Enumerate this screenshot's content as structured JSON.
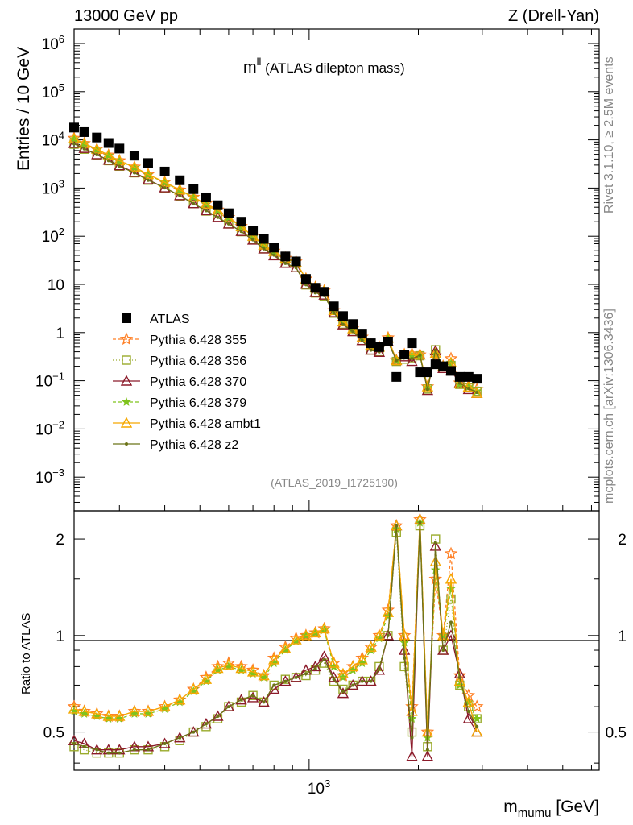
{
  "header": {
    "left": "13000 GeV pp",
    "right": "Z (Drell-Yan)",
    "title_main": "m",
    "title_sup": "ll",
    "title_rest": " (ATLAS dilepton mass)",
    "analysis": "(ATLAS_2019_I1725190)",
    "side_top": "Rivet 3.1.10, ≥ 2.5M events",
    "side_bottom": "mcplots.cern.ch [arXiv:1306.3436]"
  },
  "axes": {
    "ylabel_top": "Entries / 10 GeV",
    "ylabel_bottom": "Ratio to ATLAS",
    "xlabel_main": "m",
    "xlabel_sub": "mumu",
    "xlabel_unit": " [GeV]",
    "x_tick": "10",
    "x_tick_exp": "3",
    "y_ticks_top": [
      {
        "v": 1000000,
        "base": "10",
        "exp": "6"
      },
      {
        "v": 100000,
        "base": "10",
        "exp": "5"
      },
      {
        "v": 10000,
        "base": "10",
        "exp": "4"
      },
      {
        "v": 1000,
        "base": "10",
        "exp": "3"
      },
      {
        "v": 100,
        "base": "10",
        "exp": "2"
      },
      {
        "v": 10,
        "base": "10",
        "exp": ""
      },
      {
        "v": 1,
        "base": "1",
        "exp": ""
      },
      {
        "v": 0.1,
        "base": "10",
        "exp": "−1"
      },
      {
        "v": 0.01,
        "base": "10",
        "exp": "−2"
      },
      {
        "v": 0.001,
        "base": "10",
        "exp": "−3"
      }
    ],
    "y_ticks_bottom": [
      "2",
      "1",
      "0.5"
    ]
  },
  "legend": [
    {
      "label": "ATLAS",
      "color": "#000000",
      "marker": "square",
      "dash": "none"
    },
    {
      "label": "Pythia 6.428 355",
      "color": "#ff7f24",
      "marker": "star",
      "dash": "4,3"
    },
    {
      "label": "Pythia 6.428 356",
      "color": "#9aab2c",
      "marker": "opensquare",
      "dash": "1,3"
    },
    {
      "label": "Pythia 6.428 370",
      "color": "#8b1a2a",
      "marker": "opentriangle",
      "dash": "none"
    },
    {
      "label": "Pythia 6.428 379",
      "color": "#7fc31c",
      "marker": "smallstar",
      "dash": "4,3"
    },
    {
      "label": "Pythia 6.428 ambt1",
      "color": "#f5a800",
      "marker": "opentriangle",
      "dash": "none"
    },
    {
      "label": "Pythia 6.428 z2",
      "color": "#6b7317",
      "marker": "dot",
      "dash": "none"
    }
  ],
  "chart_data": {
    "type": "scatter",
    "title": "mll (ATLAS dilepton mass)",
    "xlabel": "m_mumu [GeV]",
    "ylabel": "Entries / 10 GeV",
    "x_scale": "log",
    "y_scale": "log",
    "xlim": [
      225,
      6300
    ],
    "ylim": [
      0.0002,
      2000000
    ],
    "ratio_ylim": [
      0.38,
      2.45
    ],
    "ratio_ylabel": "Ratio to ATLAS",
    "x": [
      225,
      240,
      260,
      280,
      300,
      330,
      360,
      400,
      440,
      480,
      520,
      560,
      600,
      650,
      700,
      750,
      800,
      860,
      920,
      980,
      1040,
      1100,
      1170,
      1240,
      1320,
      1400,
      1480,
      1560,
      1650,
      1740,
      1830,
      1920,
      2020,
      2120,
      2230,
      2340,
      2460,
      2600,
      2750,
      2900
    ],
    "atlas": [
      18000,
      14500,
      11200,
      8600,
      6600,
      4700,
      3300,
      2200,
      1450,
      950,
      640,
      440,
      300,
      200,
      130,
      88,
      58,
      38,
      30,
      13,
      8.5,
      7,
      3.5,
      2.2,
      1.5,
      0.95,
      0.6,
      0.5,
      0.65,
      0.12,
      0.35,
      0.6,
      0.15,
      0.15,
      0.22,
      0.2,
      0.16,
      0.12,
      0.12,
      0.11
    ],
    "series": [
      {
        "name": "Pythia 6.428 355",
        "ratio": [
          0.6,
          0.58,
          0.57,
          0.56,
          0.56,
          0.58,
          0.58,
          0.6,
          0.63,
          0.68,
          0.74,
          0.8,
          0.82,
          0.8,
          0.78,
          0.75,
          0.85,
          0.92,
          0.98,
          1.0,
          1.02,
          1.05,
          0.82,
          0.75,
          0.8,
          0.85,
          0.92,
          1.0,
          1.2,
          2.2,
          1.0,
          0.6,
          2.3,
          0.5,
          1.5,
          1.0,
          1.8,
          0.75,
          0.65,
          0.6
        ]
      },
      {
        "name": "Pythia 6.428 356",
        "ratio": [
          0.45,
          0.44,
          0.43,
          0.43,
          0.43,
          0.44,
          0.44,
          0.45,
          0.47,
          0.5,
          0.52,
          0.55,
          0.6,
          0.62,
          0.65,
          0.62,
          0.7,
          0.73,
          0.74,
          0.75,
          0.78,
          0.82,
          0.72,
          0.68,
          0.7,
          0.72,
          0.72,
          0.8,
          1.0,
          2.1,
          0.8,
          0.5,
          2.2,
          0.45,
          2.0,
          0.9,
          1.3,
          0.7,
          0.6,
          0.55
        ]
      },
      {
        "name": "Pythia 6.428 370",
        "ratio": [
          0.47,
          0.46,
          0.44,
          0.44,
          0.44,
          0.45,
          0.45,
          0.46,
          0.48,
          0.5,
          0.53,
          0.56,
          0.6,
          0.63,
          0.64,
          0.62,
          0.68,
          0.72,
          0.74,
          0.78,
          0.8,
          0.86,
          0.74,
          0.66,
          0.7,
          0.72,
          0.72,
          0.78,
          1.0,
          2.2,
          0.9,
          0.42,
          2.3,
          0.42,
          1.9,
          0.9,
          1.0,
          0.76,
          0.55,
          0.5
        ]
      },
      {
        "name": "Pythia 6.428 379",
        "ratio": [
          0.58,
          0.57,
          0.56,
          0.55,
          0.55,
          0.57,
          0.57,
          0.59,
          0.62,
          0.67,
          0.72,
          0.78,
          0.8,
          0.78,
          0.76,
          0.74,
          0.82,
          0.9,
          0.96,
          1.0,
          1.02,
          1.04,
          0.8,
          0.74,
          0.78,
          0.82,
          0.9,
          0.98,
          1.15,
          2.15,
          0.95,
          0.55,
          2.25,
          0.48,
          1.6,
          1.0,
          1.4,
          0.7,
          0.62,
          0.55
        ]
      },
      {
        "name": "Pythia 6.428 ambt1",
        "ratio": [
          0.59,
          0.58,
          0.57,
          0.56,
          0.56,
          0.58,
          0.58,
          0.6,
          0.63,
          0.68,
          0.73,
          0.79,
          0.81,
          0.79,
          0.77,
          0.75,
          0.84,
          0.91,
          0.97,
          1.0,
          1.02,
          1.05,
          0.82,
          0.76,
          0.8,
          0.84,
          0.92,
          1.0,
          1.18,
          2.2,
          1.0,
          0.58,
          2.3,
          0.5,
          1.7,
          1.0,
          1.5,
          0.72,
          0.62,
          0.5
        ]
      },
      {
        "name": "Pythia 6.428 z2",
        "ratio": [
          0.46,
          0.45,
          0.44,
          0.43,
          0.43,
          0.44,
          0.44,
          0.46,
          0.48,
          0.5,
          0.53,
          0.56,
          0.6,
          0.63,
          0.65,
          0.62,
          0.7,
          0.72,
          0.74,
          0.76,
          0.79,
          0.84,
          0.73,
          0.67,
          0.7,
          0.72,
          0.72,
          0.79,
          1.0,
          2.2,
          0.85,
          0.48,
          2.25,
          0.44,
          1.95,
          0.9,
          1.1,
          0.74,
          0.58,
          0.52
        ]
      }
    ]
  }
}
